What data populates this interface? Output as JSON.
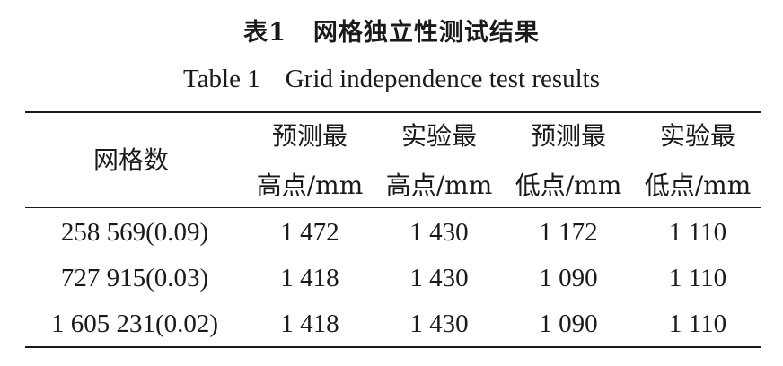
{
  "caption": {
    "cn_number": "表1",
    "cn_title": "网格独立性测试结果",
    "en_number": "Table 1",
    "en_title": "Grid independence test results"
  },
  "table": {
    "first_header": "网格数",
    "columns": [
      {
        "line1": "预测最",
        "line2": "高点/mm"
      },
      {
        "line1": "实验最",
        "line2": "高点/mm"
      },
      {
        "line1": "预测最",
        "line2": "低点/mm"
      },
      {
        "line1": "实验最",
        "line2": "低点/mm"
      }
    ],
    "rows": [
      {
        "grid": "258 569(0.09)",
        "values": [
          "1 472",
          "1 430",
          "1 172",
          "1 110"
        ]
      },
      {
        "grid": "727 915(0.03)",
        "values": [
          "1 418",
          "1 430",
          "1 090",
          "1 110"
        ]
      },
      {
        "grid": "1 605 231(0.02)",
        "values": [
          "1 418",
          "1 430",
          "1 090",
          "1 110"
        ]
      }
    ]
  }
}
